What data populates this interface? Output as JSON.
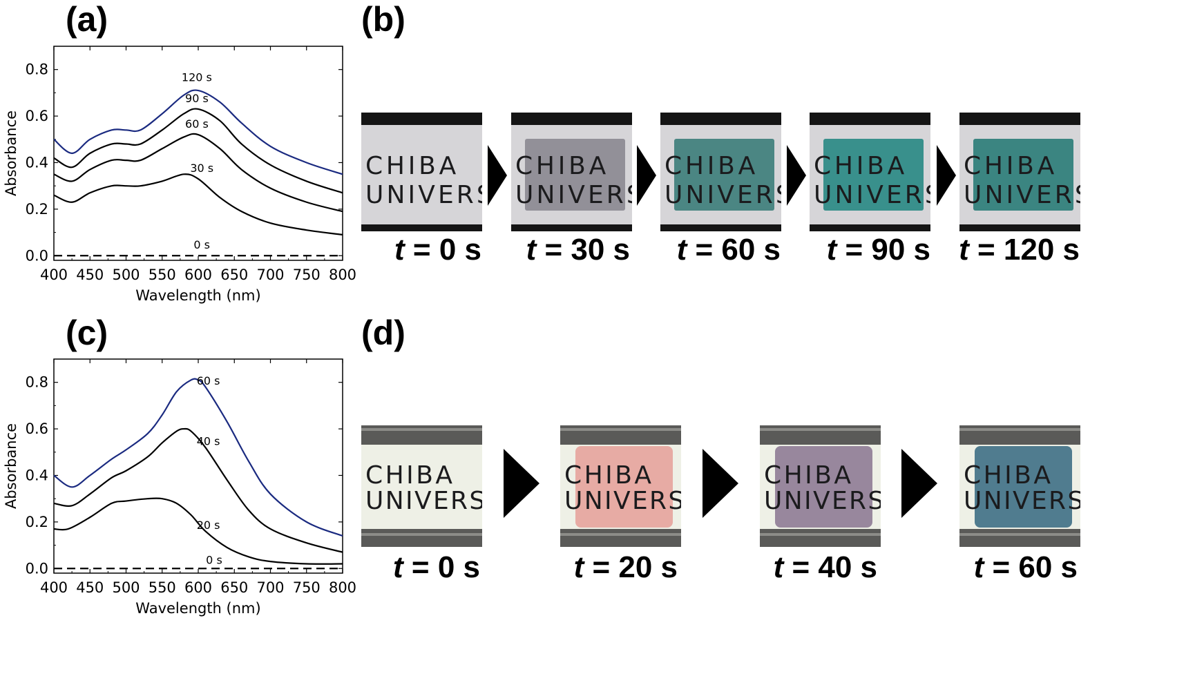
{
  "panels": {
    "a": {
      "label": "(a)"
    },
    "b": {
      "label": "(b)"
    },
    "c": {
      "label": "(c)"
    },
    "d": {
      "label": "(d)"
    }
  },
  "chart_data": [
    {
      "id": "a",
      "type": "line",
      "xlabel": "Wavelength (nm)",
      "ylabel": "Absorbance",
      "xlim": [
        400,
        800
      ],
      "ylim": [
        -0.02,
        0.9
      ],
      "xticks": [
        400,
        450,
        500,
        550,
        600,
        650,
        700,
        750,
        800
      ],
      "yticks": [
        0.0,
        0.2,
        0.4,
        0.6,
        0.8
      ],
      "ytick_labels": [
        "0.0",
        "0.2",
        "0.4",
        "0.6",
        "0.8"
      ],
      "series": [
        {
          "name": "0 s",
          "color": "#000000",
          "dashed": true,
          "x": [
            400,
            800
          ],
          "y": [
            0.0,
            0.0
          ]
        },
        {
          "name": "30 s",
          "color": "#000000",
          "x": [
            400,
            425,
            450,
            480,
            500,
            520,
            550,
            580,
            600,
            630,
            660,
            700,
            750,
            800
          ],
          "y": [
            0.26,
            0.23,
            0.27,
            0.3,
            0.3,
            0.3,
            0.32,
            0.35,
            0.33,
            0.25,
            0.19,
            0.14,
            0.11,
            0.09
          ]
        },
        {
          "name": "60 s",
          "color": "#000000",
          "x": [
            400,
            425,
            450,
            480,
            500,
            520,
            550,
            580,
            600,
            630,
            660,
            700,
            750,
            800
          ],
          "y": [
            0.35,
            0.32,
            0.37,
            0.41,
            0.41,
            0.41,
            0.46,
            0.51,
            0.52,
            0.46,
            0.37,
            0.29,
            0.23,
            0.19
          ]
        },
        {
          "name": "90 s",
          "color": "#000000",
          "x": [
            400,
            425,
            450,
            480,
            500,
            520,
            550,
            580,
            600,
            630,
            660,
            700,
            750,
            800
          ],
          "y": [
            0.42,
            0.38,
            0.44,
            0.48,
            0.48,
            0.48,
            0.54,
            0.61,
            0.63,
            0.58,
            0.48,
            0.39,
            0.32,
            0.27
          ]
        },
        {
          "name": "120 s",
          "color": "#1a2a80",
          "x": [
            400,
            425,
            450,
            480,
            500,
            520,
            550,
            580,
            600,
            630,
            660,
            700,
            750,
            800
          ],
          "y": [
            0.5,
            0.44,
            0.5,
            0.54,
            0.54,
            0.54,
            0.61,
            0.69,
            0.71,
            0.66,
            0.57,
            0.47,
            0.4,
            0.35
          ]
        }
      ],
      "annotations": [
        {
          "text": "120 s",
          "x": 598,
          "y": 0.75
        },
        {
          "text": "90 s",
          "x": 598,
          "y": 0.66
        },
        {
          "text": "60 s",
          "x": 598,
          "y": 0.55
        },
        {
          "text": "30 s",
          "x": 605,
          "y": 0.36
        },
        {
          "text": "0 s",
          "x": 605,
          "y": 0.03
        }
      ]
    },
    {
      "id": "c",
      "type": "line",
      "xlabel": "Wavelength (nm)",
      "ylabel": "Absorbance",
      "xlim": [
        400,
        800
      ],
      "ylim": [
        -0.02,
        0.9
      ],
      "xticks": [
        400,
        450,
        500,
        550,
        600,
        650,
        700,
        750,
        800
      ],
      "yticks": [
        0.0,
        0.2,
        0.4,
        0.6,
        0.8
      ],
      "ytick_labels": [
        "0.0",
        "0.2",
        "0.4",
        "0.6",
        "0.8"
      ],
      "series": [
        {
          "name": "0 s",
          "color": "#000000",
          "dashed": true,
          "x": [
            400,
            800
          ],
          "y": [
            0.0,
            0.0
          ]
        },
        {
          "name": "20 s",
          "color": "#000000",
          "x": [
            400,
            420,
            450,
            480,
            500,
            530,
            550,
            570,
            590,
            610,
            640,
            670,
            700,
            750,
            800
          ],
          "y": [
            0.17,
            0.17,
            0.22,
            0.28,
            0.29,
            0.3,
            0.3,
            0.28,
            0.23,
            0.16,
            0.09,
            0.05,
            0.03,
            0.02,
            0.02
          ]
        },
        {
          "name": "40 s",
          "color": "#000000",
          "x": [
            400,
            425,
            450,
            480,
            500,
            530,
            550,
            570,
            580,
            590,
            610,
            640,
            670,
            700,
            750,
            800
          ],
          "y": [
            0.28,
            0.27,
            0.32,
            0.39,
            0.42,
            0.48,
            0.54,
            0.59,
            0.6,
            0.59,
            0.52,
            0.38,
            0.25,
            0.17,
            0.11,
            0.07
          ]
        },
        {
          "name": "60 s",
          "color": "#1a2a80",
          "x": [
            400,
            425,
            450,
            480,
            500,
            530,
            550,
            570,
            590,
            600,
            610,
            640,
            670,
            700,
            750,
            800
          ],
          "y": [
            0.4,
            0.35,
            0.4,
            0.47,
            0.51,
            0.58,
            0.66,
            0.76,
            0.81,
            0.81,
            0.78,
            0.63,
            0.46,
            0.32,
            0.2,
            0.14
          ]
        }
      ],
      "annotations": [
        {
          "text": "60 s",
          "x": 614,
          "y": 0.79
        },
        {
          "text": "40 s",
          "x": 614,
          "y": 0.53
        },
        {
          "text": "20 s",
          "x": 614,
          "y": 0.17
        },
        {
          "text": "0 s",
          "x": 622,
          "y": 0.02
        }
      ]
    }
  ],
  "photos_b": [
    {
      "time_prefix": "t",
      "time_value": "= 0 s",
      "tint": "none"
    },
    {
      "time_prefix": "t",
      "time_value": "= 30 s",
      "tint": "#8c8a92"
    },
    {
      "time_prefix": "t",
      "time_value": "= 60 s",
      "tint": "#3f7f7c"
    },
    {
      "time_prefix": "t",
      "time_value": "= 90 s",
      "tint": "#2b8a85"
    },
    {
      "time_prefix": "t",
      "time_value": "= 120 s",
      "tint": "#2e7e79"
    }
  ],
  "photos_d": [
    {
      "time_prefix": "t",
      "time_value": "= 0 s",
      "tint": "none"
    },
    {
      "time_prefix": "t",
      "time_value": "= 20 s",
      "tint": "#e6a39c"
    },
    {
      "time_prefix": "t",
      "time_value": "= 40 s",
      "tint": "#8e7b95"
    },
    {
      "time_prefix": "t",
      "time_value": "= 60 s",
      "tint": "#3e6f85"
    }
  ],
  "sample_text": {
    "line1": "CHIBA",
    "line2": "UNIVERS"
  }
}
